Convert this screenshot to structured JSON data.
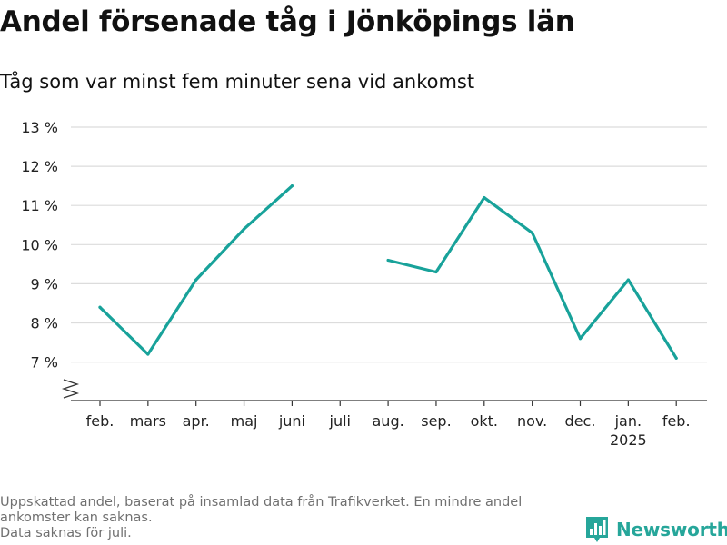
{
  "title": "Andel försenade tåg i Jönköpings län",
  "subtitle": "Tåg som var minst fem minuter sena vid ankomst",
  "footnote": {
    "lines": [
      "Uppskattad andel, baserat på insamlad data från Trafikverket. En mindre andel",
      "ankomster kan saknas.",
      "Data saknas för juli."
    ]
  },
  "brand": {
    "name": "Newsworthy",
    "icon": "newsworthy-logo-icon",
    "color": "#26a69a"
  },
  "chart_data": {
    "type": "line",
    "categories": [
      "feb.",
      "mars",
      "apr.",
      "maj",
      "juni",
      "juli",
      "aug.",
      "sep.",
      "okt.",
      "nov.",
      "dec.",
      "jan.",
      "feb."
    ],
    "year_labels": [
      "",
      "",
      "",
      "",
      "",
      "",
      "",
      "",
      "",
      "",
      "",
      "2025",
      ""
    ],
    "series": [
      {
        "values": [
          8.4,
          7.2,
          9.1,
          10.4,
          11.5,
          null,
          9.6,
          9.3,
          11.2,
          10.3,
          7.6,
          9.1,
          7.1
        ],
        "color": "#18a29a"
      }
    ],
    "y_ticks": [
      7,
      8,
      9,
      10,
      11,
      12,
      13
    ],
    "y_tick_labels": [
      "7 %",
      "8 %",
      "9 %",
      "10 %",
      "11 %",
      "12 %",
      "13 %"
    ],
    "ylim": [
      6,
      13
    ],
    "axis_break": true,
    "grid": true,
    "xlabel": "",
    "ylabel": ""
  }
}
